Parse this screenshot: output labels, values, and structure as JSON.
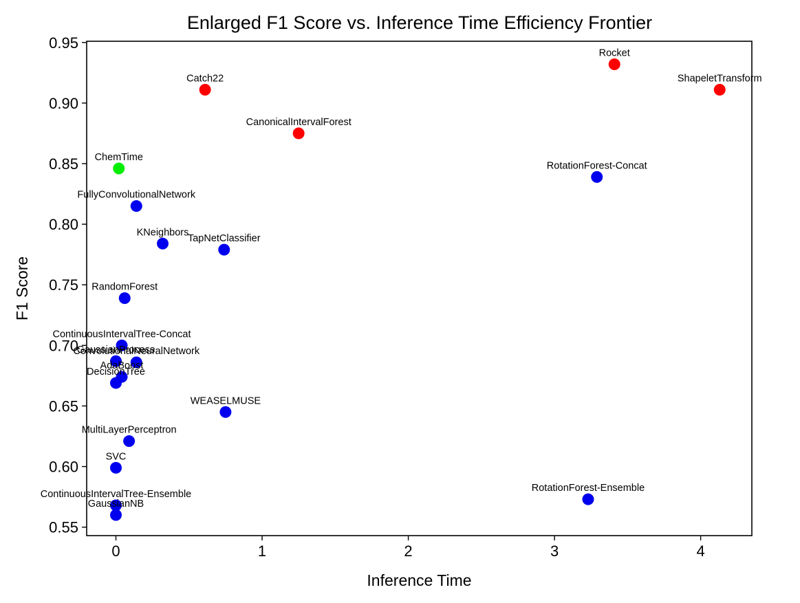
{
  "chart_data": {
    "type": "scatter",
    "title": "Enlarged F1 Score vs. Inference Time Efficiency Frontier",
    "xlabel": "Inference Time",
    "ylabel": "F1 Score",
    "xlim": [
      -0.2,
      4.35
    ],
    "ylim": [
      0.543,
      0.951
    ],
    "xticks": [
      0,
      1,
      2,
      3,
      4
    ],
    "yticks": [
      0.55,
      0.6,
      0.65,
      0.7,
      0.75,
      0.8,
      0.85,
      0.9,
      0.95
    ],
    "colors": {
      "frontier": "#ff0000",
      "highlight": "#00ee00",
      "other": "#0000ee"
    },
    "points": [
      {
        "label": "Rocket",
        "x": 3.41,
        "y": 0.932,
        "group": "frontier"
      },
      {
        "label": "ShapeletTransform",
        "x": 4.13,
        "y": 0.911,
        "group": "frontier"
      },
      {
        "label": "Catch22",
        "x": 0.61,
        "y": 0.911,
        "group": "frontier"
      },
      {
        "label": "CanonicalIntervalForest",
        "x": 1.25,
        "y": 0.875,
        "group": "frontier"
      },
      {
        "label": "ChemTime",
        "x": 0.02,
        "y": 0.846,
        "group": "highlight"
      },
      {
        "label": "RotationForest-Concat",
        "x": 3.29,
        "y": 0.839,
        "group": "other"
      },
      {
        "label": "FullyConvolutionalNetwork",
        "x": 0.14,
        "y": 0.815,
        "group": "other"
      },
      {
        "label": "KNeighbors",
        "x": 0.32,
        "y": 0.784,
        "group": "other"
      },
      {
        "label": "TapNetClassifier",
        "x": 0.74,
        "y": 0.779,
        "group": "other"
      },
      {
        "label": "RandomForest",
        "x": 0.06,
        "y": 0.739,
        "group": "other"
      },
      {
        "label": "ContinuousIntervalTree-Concat",
        "x": 0.04,
        "y": 0.7,
        "group": "other"
      },
      {
        "label": "GaussianProcess",
        "x": 0.0,
        "y": 0.687,
        "group": "other"
      },
      {
        "label": "ConvolutionalNeuralNetwork",
        "x": 0.14,
        "y": 0.686,
        "group": "other"
      },
      {
        "label": "AdaBoost",
        "x": 0.04,
        "y": 0.674,
        "group": "other"
      },
      {
        "label": "DecisionTree",
        "x": 0.0,
        "y": 0.669,
        "group": "other"
      },
      {
        "label": "WEASELMUSE",
        "x": 0.75,
        "y": 0.645,
        "group": "other"
      },
      {
        "label": "MultiLayerPerceptron",
        "x": 0.09,
        "y": 0.621,
        "group": "other"
      },
      {
        "label": "SVC",
        "x": 0.0,
        "y": 0.599,
        "group": "other"
      },
      {
        "label": "RotationForest-Ensemble",
        "x": 3.23,
        "y": 0.573,
        "group": "other"
      },
      {
        "label": "ContinuousIntervalTree-Ensemble",
        "x": 0.0,
        "y": 0.568,
        "group": "other"
      },
      {
        "label": "GaussianNB",
        "x": 0.0,
        "y": 0.56,
        "group": "other"
      }
    ]
  }
}
